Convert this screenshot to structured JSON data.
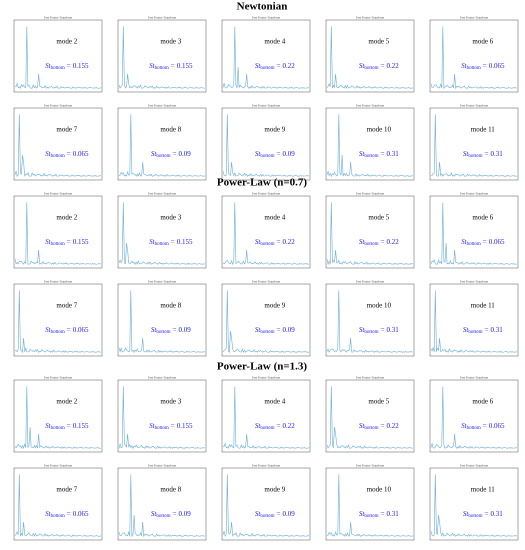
{
  "plot_title": "Fast Fourier Transform",
  "st_symbol": "St",
  "st_subscript": "bottom",
  "st_equals": "=",
  "groups": [
    {
      "title": "Newtonian",
      "panels": [
        {
          "mode": "mode 2",
          "st": 0.155
        },
        {
          "mode": "mode 3",
          "st": 0.155
        },
        {
          "mode": "mode 4",
          "st": 0.22
        },
        {
          "mode": "mode 5",
          "st": 0.22
        },
        {
          "mode": "mode 6",
          "st": 0.065
        },
        {
          "mode": "mode 7",
          "st": 0.065
        },
        {
          "mode": "mode 8",
          "st": 0.09
        },
        {
          "mode": "mode 9",
          "st": 0.09
        },
        {
          "mode": "mode 10",
          "st": 0.31
        },
        {
          "mode": "mode 11",
          "st": 0.31
        }
      ]
    },
    {
      "title": "Power-Law (n=0.7)",
      "panels": [
        {
          "mode": "mode 2",
          "st": 0.155
        },
        {
          "mode": "mode 3",
          "st": 0.155
        },
        {
          "mode": "mode 4",
          "st": 0.22
        },
        {
          "mode": "mode 5",
          "st": 0.22
        },
        {
          "mode": "mode 6",
          "st": 0.065
        },
        {
          "mode": "mode 7",
          "st": 0.065
        },
        {
          "mode": "mode 8",
          "st": 0.09
        },
        {
          "mode": "mode 9",
          "st": 0.09
        },
        {
          "mode": "mode 10",
          "st": 0.31
        },
        {
          "mode": "mode 11",
          "st": 0.31
        }
      ]
    },
    {
      "title": "Power-Law (n=1.3)",
      "panels": [
        {
          "mode": "mode 2",
          "st": 0.155
        },
        {
          "mode": "mode 3",
          "st": 0.155
        },
        {
          "mode": "mode 4",
          "st": 0.22
        },
        {
          "mode": "mode 5",
          "st": 0.22
        },
        {
          "mode": "mode 6",
          "st": 0.065
        },
        {
          "mode": "mode 7",
          "st": 0.065
        },
        {
          "mode": "mode 8",
          "st": 0.09
        },
        {
          "mode": "mode 9",
          "st": 0.09
        },
        {
          "mode": "mode 10",
          "st": 0.31
        },
        {
          "mode": "mode 11",
          "st": 0.31
        }
      ]
    }
  ]
}
